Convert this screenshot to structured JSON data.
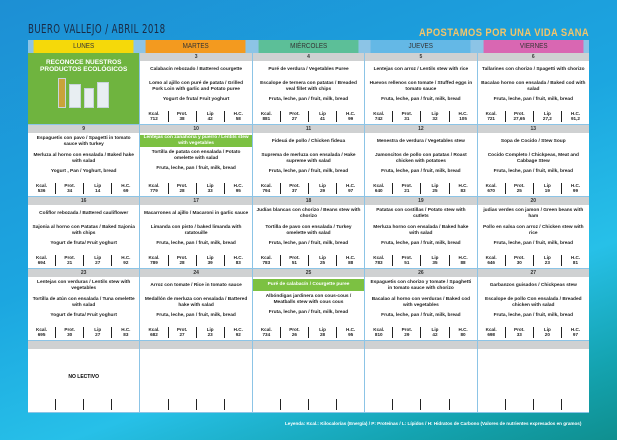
{
  "header": {
    "title": "BUERO VALLEJO / ABRIL 2018",
    "slogan": "APOSTAMOS POR UNA VIDA SANA"
  },
  "days": [
    {
      "label": "LUNES",
      "color": "#f5d90a"
    },
    {
      "label": "MARTES",
      "color": "#f39a1f"
    },
    {
      "label": "MIÉRCOLES",
      "color": "#5cbf98"
    },
    {
      "label": "JUEVES",
      "color": "#64b8e6"
    },
    {
      "label": "VIERNES",
      "color": "#d967b2"
    }
  ],
  "promo": {
    "text": "RECONOCE NUESTROS PRODUCTOS ECOLÓGICOS",
    "color": "#6fb43f"
  },
  "nutrient_labels": [
    "Kcal.",
    "Prot.",
    "Lip",
    "H.C."
  ],
  "highlight_color": "#7cc142",
  "weeks": [
    [
      {
        "promo": true
      },
      {
        "n": "3",
        "d1": "Calabacín rebozado / Battered courgette",
        "d2": "Lomo al ajillo con puré de patata / Grilled Pork Loin with garlic and Potato puree",
        "dessert": "Yogurt de fruta/ Fruit yoghurt",
        "v": [
          "712",
          "38",
          "42",
          "58"
        ]
      },
      {
        "n": "4",
        "d1": "Puré de verdura / Vegetables Puree",
        "d2": "Escalope de ternera con patatas / Breaded veal fillet with chips",
        "dessert": "Fruta, leche,  pan / fruit, milk, bread",
        "v": [
          "881",
          "27",
          "41",
          "99"
        ]
      },
      {
        "n": "5",
        "d1": "Lentejas con arroz / Lentils stew with rice",
        "d2": "Huevos rellenos con tomate / Stuffed eggs in tomato sauce",
        "dessert": "Fruta, leche,  pan / fruit, milk, bread",
        "v": [
          "742",
          "31",
          "32",
          "105"
        ]
      },
      {
        "n": "6",
        "d1": "Tallarines con chorizo / Spagetti with chorizo",
        "d2": "Bacalao horno con ensalada / Baked cod with salad",
        "dessert": "Fruta, leche,  pan / fruit, milk, bread",
        "v": [
          "721",
          "27,65",
          "27,2",
          "91,2"
        ]
      }
    ],
    [
      {
        "n": "9",
        "d1": "Espaguetis con pavo / Spagetti in tomato sauce with turkey",
        "d2": "Merluza al horno con ensalada / Baked hake with salad",
        "dessert": "Yogurt , Pan  / Yoghurt, bread",
        "v": [
          "536",
          "34",
          "14",
          "69"
        ]
      },
      {
        "n": "10",
        "d1": "Lentejas con zanahoria y puerro / Lentils stew with vegetables",
        "hl": true,
        "d2": "Tortilla de patata con ensalada / Potato omelette with salad",
        "dessert": "Fruta, leche,  pan / fruit, milk, bread",
        "v": [
          "779",
          "28",
          "33",
          "95"
        ]
      },
      {
        "n": "11",
        "d1": "Fideuá de pollo / Chicken fideua",
        "d2": "Suprema de merluza con ensalada / Hake supreme with salad",
        "dessert": "Fruta, leche,  pan / fruit, milk, bread",
        "v": [
          "794",
          "37",
          "29",
          "97"
        ]
      },
      {
        "n": "12",
        "d1": "Menestra de verdura / Vegetables stew",
        "d2": "Jamoncitos de pollo con patatas / Roast chicken with potatoes",
        "dessert": "Fruta, leche,  pan / fruit, milk, bread",
        "v": [
          "640",
          "21",
          "25",
          "83"
        ]
      },
      {
        "n": "13",
        "d1": "Sopa de Cocido / Stew Soup",
        "d2": "Cocido Completo / Chickpeas, Meat and Cabbage Stew",
        "dessert": "Fruta, leche,  pan / fruit, milk, bread",
        "v": [
          "670",
          "25",
          "19",
          "99"
        ]
      }
    ],
    [
      {
        "n": "16",
        "d1": "Coliflor rebozada / Battered cauliflower",
        "d2": "Sajonia al horno con Patatas / Baked Sajonia with chips",
        "dessert": "Yogurt de fruta/ Fruit yoghurt",
        "v": [
          "694",
          "21",
          "27",
          "92"
        ]
      },
      {
        "n": "17",
        "d1": "Macarrones al ajillo / Macaroni in garlic sauce",
        "d2": "Limanda con pisto / baked limanda with ratatouille",
        "dessert": "Fruta, leche,  pan / fruit, milk, bread",
        "v": [
          "789",
          "28",
          "39",
          "83"
        ]
      },
      {
        "n": "18",
        "d1": "Judías blancas con chorizo / Beans stew with chorizo",
        "d2": "Tortilla de pavo con ensalada / Turkey omelette with salad",
        "dessert": "Fruta, leche,  pan / fruit, milk, bread",
        "v": [
          "783",
          "51",
          "25",
          "88"
        ]
      },
      {
        "n": "19",
        "d1": "Patatas con costillas / Potato stew with cutlets",
        "d2": "Merluza horno con ensalada / Baked hake with salad",
        "dessert": "Fruta, leche,  pan / fruit, milk, bread",
        "v": [
          "783",
          "51",
          "35",
          "88"
        ]
      },
      {
        "n": "20",
        "d1": "judias verdes con jamon / Green beans with ham",
        "d2": "Pollo en salsa con arroz / Chicken stew with rice",
        "dessert": "Fruta, leche,  pan / fruit, milk, bread",
        "v": [
          "646",
          "30",
          "23",
          "81"
        ]
      }
    ],
    [
      {
        "n": "23",
        "d1": "Lentejas  con verduras / Lentils stew with vegetables",
        "d2": "Tortilla de atún con ensalada / Tuna omelette with salad",
        "dessert": "Yogurt de fruta/ Fruit yoghurt",
        "v": [
          "695",
          "30",
          "27",
          "83"
        ]
      },
      {
        "n": "24",
        "d1": "Arroz con tomate / Rice in tomato sauce",
        "d2": "Medallón de merluza con ensalada / Battered hake with salad",
        "dessert": "Fruta, leche,  pan / fruit, milk, bread",
        "v": [
          "682",
          "27",
          "23",
          "92"
        ]
      },
      {
        "n": "25",
        "d1": "Puré de calabacín / Courgette puree",
        "hl": true,
        "d2": "Albóndigas jardinera con cous-cous / Meatballs stew with cous cous",
        "dessert": "Fruta, leche,  pan / fruit, milk, bread",
        "v": [
          "734",
          "26",
          "28",
          "95"
        ]
      },
      {
        "n": "26",
        "d1": "Espaguetis con chorizo y tomate / Spaghetti in tomato sauce with chorizo",
        "d2": "Bacalao al horno con verduras / Baked cod with vegetables",
        "dessert": "Fruta, leche,  pan / fruit, milk, bread",
        "v": [
          "810",
          "29",
          "42",
          "80"
        ]
      },
      {
        "n": "27",
        "d1": "Garbanzos guisados / Chickpeas stew",
        "d2": "Escalope de pollo Con ensalada / Breaded chicken with salad",
        "dessert": "Fruta, leche,  pan / fruit, milk, bread",
        "v": [
          "698",
          "33",
          "20",
          "97"
        ]
      }
    ],
    [
      {
        "n": "",
        "note": "NO LECTIVO",
        "v": [
          "",
          "",
          "",
          ""
        ]
      },
      {
        "n": "",
        "v": [
          "",
          "",
          "",
          ""
        ]
      },
      {
        "n": "",
        "v": [
          "",
          "",
          "",
          ""
        ]
      },
      {
        "n": "",
        "v": [
          "",
          "",
          "",
          ""
        ]
      },
      {
        "n": "",
        "v": [
          "",
          "",
          "",
          ""
        ]
      }
    ]
  ],
  "legend": "Leyenda: Kcal.: Kilocalorías (Energía) / P: Proteínas / L: Lípidos / H: Hidratos de Carbono (Valores de nutrientes expresados en gramos)"
}
